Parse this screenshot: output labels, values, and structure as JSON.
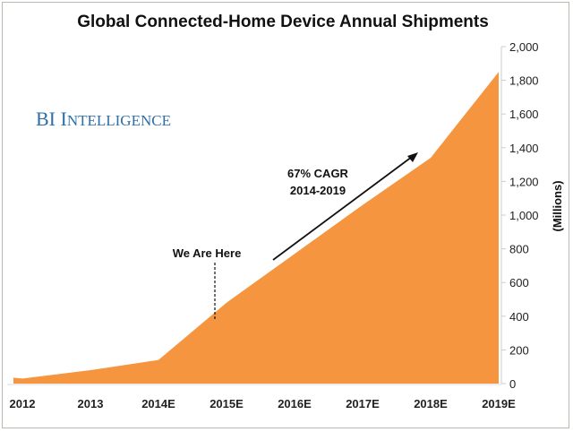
{
  "chart_data": {
    "type": "area",
    "title": "Global Connected-Home Device Annual Shipments",
    "brand": "BI Intelligence",
    "ylabel": "(Millions)",
    "xlabel": "",
    "categories": [
      "2012",
      "2013",
      "2014E",
      "2015E",
      "2016E",
      "2017E",
      "2018E",
      "2019E"
    ],
    "values": [
      30,
      80,
      140,
      480,
      770,
      1060,
      1340,
      1850
    ],
    "ylim": [
      0,
      2000
    ],
    "yticks": [
      "0",
      "200",
      "400",
      "600",
      "800",
      "1,000",
      "1,200",
      "1,400",
      "1,600",
      "1,800",
      "2,000"
    ],
    "y_axis_side": "right",
    "grid": false,
    "fill_color": "#f5953f",
    "annotations": {
      "marker": "We Are Here",
      "marker_category": "2015E",
      "cagr_line1": "67% CAGR",
      "cagr_line2": "2014-2019"
    }
  }
}
